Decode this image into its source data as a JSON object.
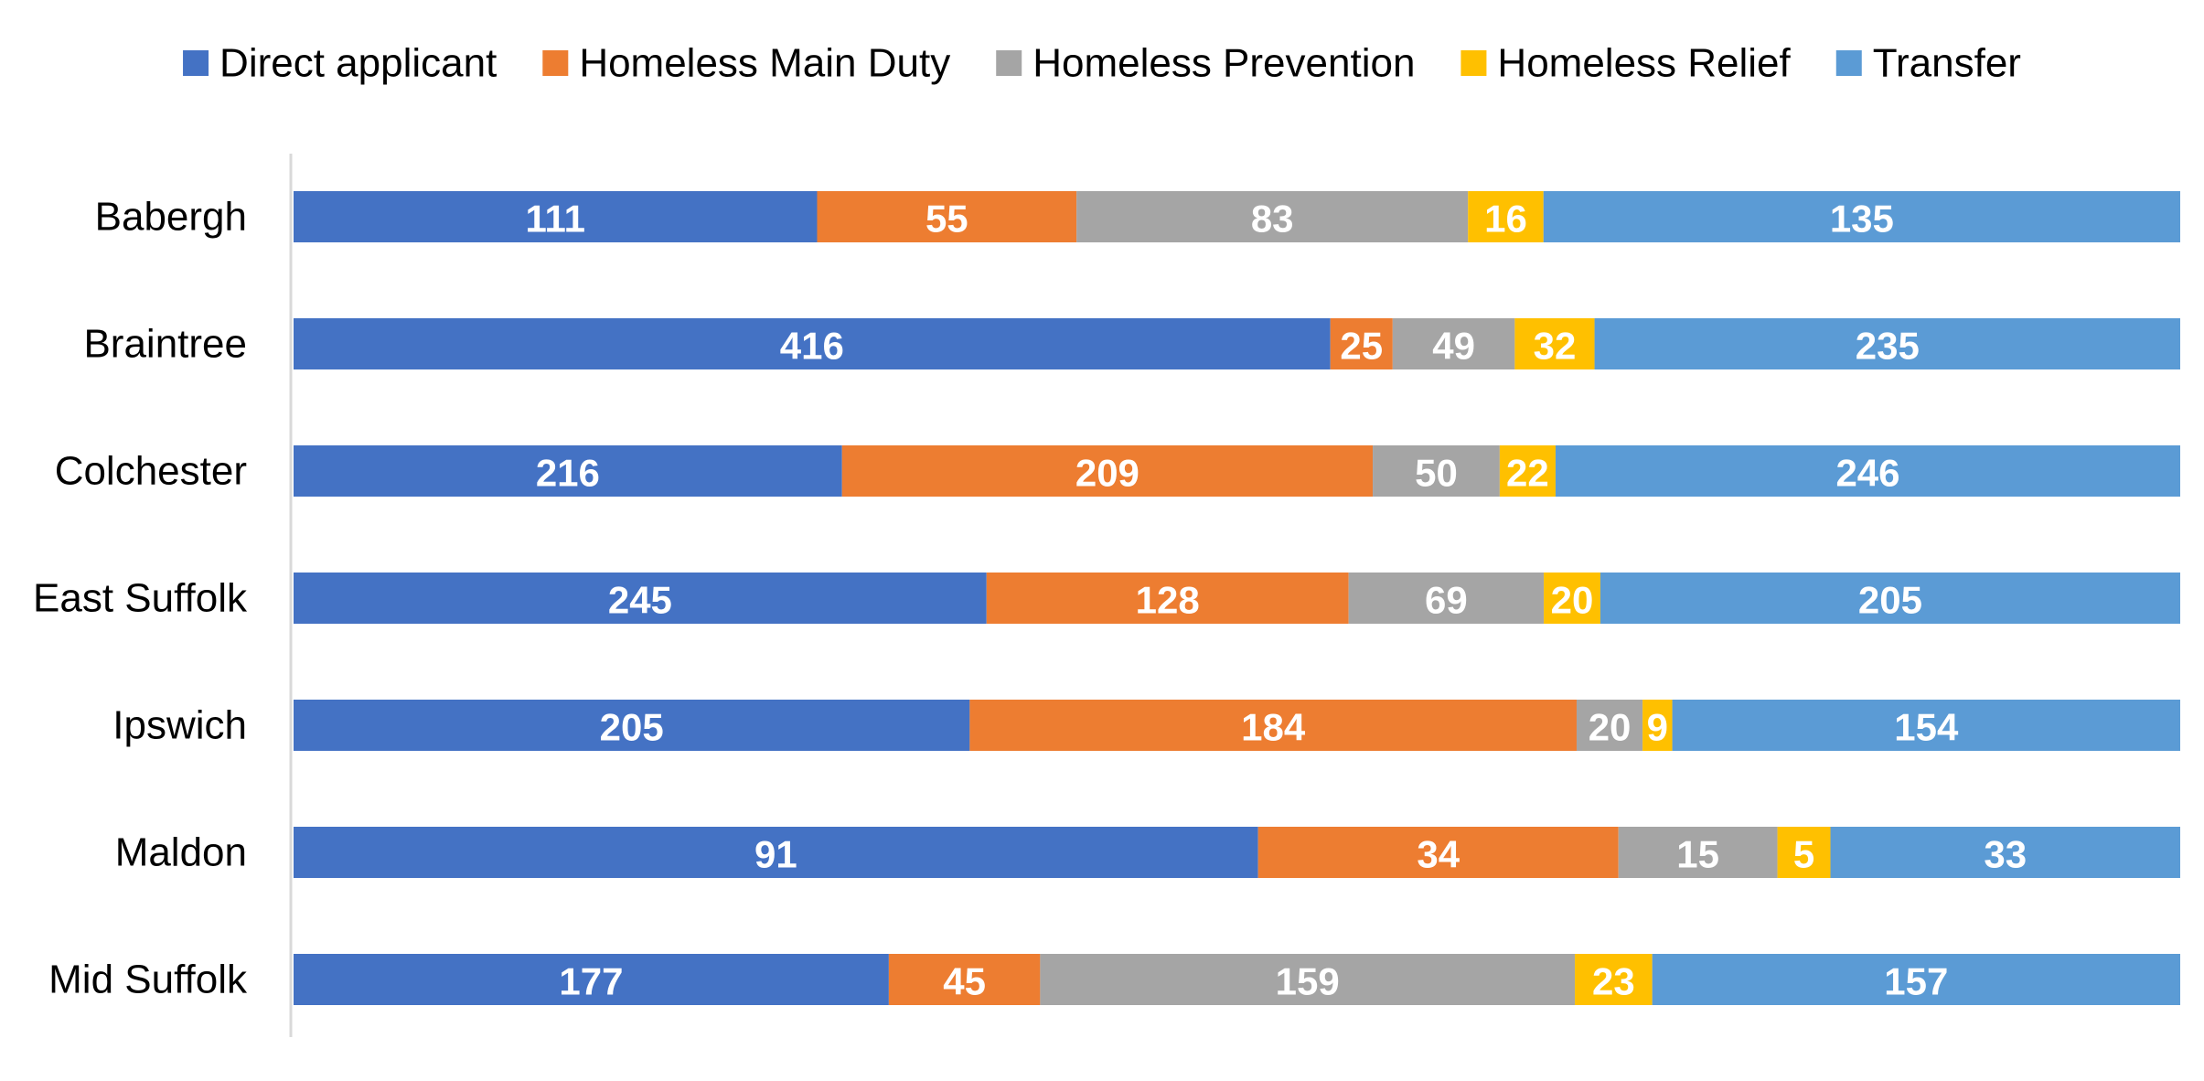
{
  "chart_data": {
    "type": "bar",
    "orientation": "horizontal",
    "stacked": "percent",
    "title": "",
    "xlabel": "",
    "ylabel": "",
    "legend_position": "top",
    "grid": false,
    "categories": [
      "Babergh",
      "Braintree",
      "Colchester",
      "East Suffolk",
      "Ipswich",
      "Maldon",
      "Mid Suffolk"
    ],
    "series": [
      {
        "name": "Direct applicant",
        "color": "#4472C4",
        "values": [
          111,
          416,
          216,
          245,
          205,
          91,
          177
        ]
      },
      {
        "name": "Homeless Main Duty",
        "color": "#ED7D31",
        "values": [
          55,
          25,
          209,
          128,
          184,
          34,
          45
        ]
      },
      {
        "name": "Homeless Prevention",
        "color": "#A5A5A5",
        "values": [
          83,
          49,
          50,
          69,
          20,
          15,
          159
        ]
      },
      {
        "name": "Homeless Relief",
        "color": "#FFC000",
        "values": [
          16,
          32,
          22,
          20,
          9,
          5,
          23
        ]
      },
      {
        "name": "Transfer",
        "color": "#5B9BD5",
        "values": [
          135,
          235,
          246,
          205,
          154,
          33,
          157
        ]
      }
    ]
  }
}
